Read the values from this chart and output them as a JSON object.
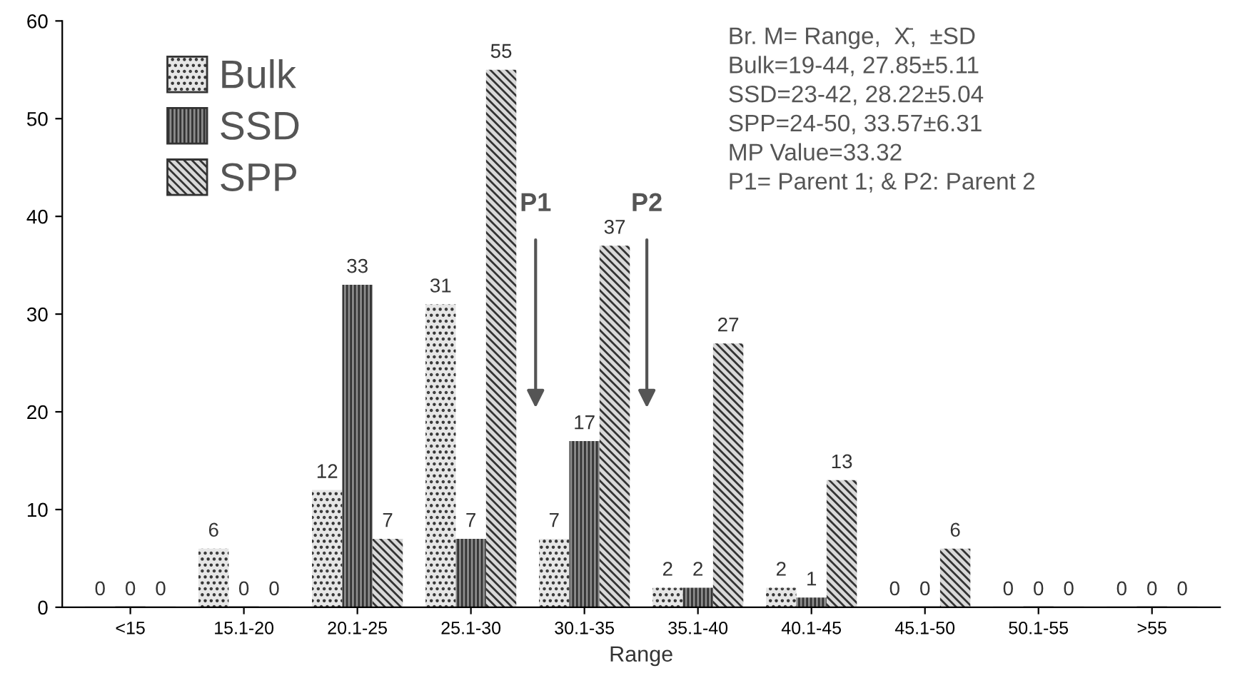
{
  "chart_data": {
    "type": "bar",
    "xlabel": "Range",
    "categories": [
      "<15",
      "15.1-20",
      "20.1-25",
      "25.1-30",
      "30.1-35",
      "35.1-40",
      "40.1-45",
      "45.1-50",
      "50.1-55",
      ">55"
    ],
    "series": [
      {
        "name": "Bulk",
        "color": "#e6e6e6",
        "values": [
          0,
          6,
          12,
          31,
          7,
          2,
          2,
          0,
          0,
          0
        ]
      },
      {
        "name": "SSD",
        "color": "#8c8c8c",
        "values": [
          0,
          0,
          33,
          7,
          17,
          2,
          1,
          0,
          0,
          0
        ]
      },
      {
        "name": "SPP",
        "color": "#d9d9d9",
        "values": [
          0,
          0,
          7,
          55,
          37,
          27,
          13,
          6,
          0,
          0
        ]
      }
    ],
    "ylim": [
      0,
      60
    ],
    "yticks": [
      0,
      10,
      20,
      30,
      40,
      50,
      60
    ],
    "grid": false,
    "legend": "top left",
    "data_labels": true,
    "annotations": [
      "Br. M= Range,  X̄,  ±SD\nBulk=19-44, 27.85±5.11\nSSD=23-42, 28.22±5.04\nSPP=24-50, 33.57±6.31\nMP Value=33.32\nP1= Parent 1; & P2: Parent 2",
      "P1",
      "P2"
    ]
  }
}
